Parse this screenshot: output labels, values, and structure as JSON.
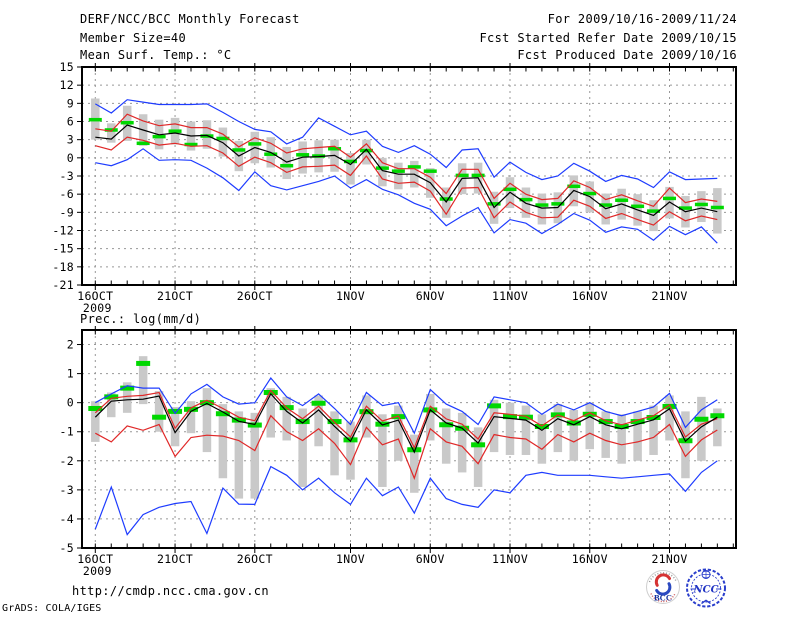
{
  "header": {
    "title": "DERF/NCC/BCC Monthly Forecast",
    "member_size": "Member Size=40",
    "for_range": "For 2009/10/16-2009/11/24",
    "fcst_started": "Fcst Started Refer Date 2009/10/15",
    "fcst_produced": "Fcst Produced Date 2009/10/16"
  },
  "footer": {
    "url": "http://cmdp.ncc.cma.gov.cn",
    "credit": "GrADS: COLA/IGES"
  },
  "logos": {
    "bcc_label": "BCC",
    "ncc_label": "NCC"
  },
  "colors": {
    "black": "#000000",
    "red": "#e02828",
    "blue": "#1e3cff",
    "green": "#00d800",
    "gray_bar": "#c9c9c9",
    "grid": "#989898"
  },
  "chart_data": [
    {
      "type": "line",
      "title": "Mean Surf. Temp.: °C",
      "axis_range": [
        -21,
        15
      ],
      "yticks": [
        15,
        12,
        9,
        6,
        3,
        0,
        -3,
        -6,
        -9,
        -12,
        -15,
        -18,
        -21
      ],
      "grid": true,
      "x_ticks": [
        {
          "day": 0,
          "label": "16OCT",
          "sub": "2009"
        },
        {
          "day": 5,
          "label": "21OCT"
        },
        {
          "day": 10,
          "label": "26OCT"
        },
        {
          "day": 16,
          "label": "1NOV"
        },
        {
          "day": 21,
          "label": "6NOV"
        },
        {
          "day": 26,
          "label": "11NOV"
        },
        {
          "day": 31,
          "label": "16NOV"
        },
        {
          "day": 36,
          "label": "21NOV"
        }
      ],
      "series": [
        {
          "name": "blue-upper",
          "color_key": "blue",
          "values": [
            8.9,
            7.4,
            9.6,
            9.2,
            8.8,
            8.8,
            8.8,
            8.9,
            7.5,
            6.0,
            4.7,
            4.3,
            2.3,
            3.4,
            6.6,
            5.2,
            3.8,
            4.4,
            1.9,
            0.9,
            2.0,
            0.6,
            -1.6,
            1.3,
            1.5,
            -3.2,
            -0.7,
            -2.4,
            -3.6,
            -3.0,
            -0.9,
            -2.2,
            -3.9,
            -2.9,
            -3.5,
            -4.9,
            -2.3,
            -3.6,
            -3.5,
            -3.4
          ]
        },
        {
          "name": "red-upper",
          "color_key": "red",
          "values": [
            4.8,
            4.4,
            7.2,
            6.1,
            5.3,
            5.6,
            5.0,
            5.0,
            3.9,
            1.8,
            3.3,
            2.4,
            0.8,
            1.5,
            1.7,
            1.9,
            0.1,
            2.3,
            -0.8,
            -1.8,
            -1.8,
            -3.2,
            -5.9,
            -1.9,
            -1.9,
            -6.7,
            -4.2,
            -6.0,
            -6.9,
            -6.7,
            -3.8,
            -4.9,
            -6.9,
            -6.1,
            -7.1,
            -8.0,
            -5.0,
            -7.4,
            -6.8,
            -7.2
          ]
        },
        {
          "name": "red-lower",
          "color_key": "red",
          "values": [
            2.0,
            1.3,
            3.4,
            2.9,
            2.1,
            2.4,
            1.9,
            2.0,
            0.8,
            -1.4,
            0.1,
            -0.8,
            -2.4,
            -1.5,
            -1.4,
            -1.2,
            -2.9,
            0.3,
            -3.5,
            -4.2,
            -4.0,
            -5.5,
            -9.3,
            -5.0,
            -4.9,
            -9.9,
            -7.3,
            -9.0,
            -9.9,
            -9.8,
            -7.0,
            -8.0,
            -10.0,
            -9.2,
            -10.2,
            -11.1,
            -8.9,
            -10.4,
            -9.6,
            -10.2
          ]
        },
        {
          "name": "blue-lower",
          "color_key": "blue",
          "values": [
            -0.8,
            -1.3,
            -0.3,
            1.5,
            -0.4,
            -0.3,
            -0.4,
            -1.7,
            -3.3,
            -5.4,
            -2.3,
            -4.6,
            -5.3,
            -4.6,
            -3.9,
            -3.0,
            -5.0,
            -3.6,
            -5.2,
            -6.1,
            -7.5,
            -8.5,
            -11.2,
            -9.6,
            -8.2,
            -12.4,
            -10.2,
            -10.8,
            -12.5,
            -11.0,
            -9.2,
            -10.3,
            -12.3,
            -11.4,
            -11.8,
            -13.6,
            -11.3,
            -12.7,
            -11.4,
            -14.1
          ]
        },
        {
          "name": "ensemble-mean",
          "color_key": "black",
          "values": [
            3.4,
            3.1,
            5.4,
            4.6,
            3.8,
            4.1,
            3.6,
            3.7,
            2.5,
            0.3,
            1.7,
            0.9,
            -0.7,
            0.1,
            0.2,
            0.4,
            -1.1,
            1.4,
            -2.1,
            -2.7,
            -2.7,
            -4.1,
            -7.3,
            -3.4,
            -3.3,
            -8.2,
            -5.7,
            -7.5,
            -8.3,
            -8.2,
            -5.4,
            -6.4,
            -8.4,
            -7.6,
            -8.6,
            -9.5,
            -7.3,
            -8.9,
            -8.3,
            -8.9
          ]
        }
      ],
      "obs": {
        "name": "obs-dash",
        "color_key": "green",
        "values": [
          6.3,
          4.6,
          5.8,
          2.4,
          3.5,
          4.4,
          2.2,
          3.6,
          3.2,
          1.3,
          2.3,
          0.6,
          -1.3,
          0.5,
          0.3,
          1.5,
          -0.6,
          1.2,
          -1.7,
          -2.2,
          -1.5,
          -2.2,
          -6.8,
          -2.9,
          -2.9,
          -7.6,
          -5.2,
          -6.9,
          -7.8,
          -7.6,
          -4.7,
          -5.9,
          -7.8,
          -7.0,
          -8.0,
          -8.8,
          -6.7,
          -8.3,
          -7.7,
          -8.2
        ]
      },
      "spread_bars": {
        "name": "spread-bar",
        "color_key": "gray_bar",
        "ranges": [
          [
            3.0,
            9.8
          ],
          [
            2.5,
            5.7
          ],
          [
            2.8,
            8.6
          ],
          [
            2.0,
            7.2
          ],
          [
            1.4,
            6.3
          ],
          [
            2.2,
            6.6
          ],
          [
            1.2,
            6.0
          ],
          [
            1.5,
            6.2
          ],
          [
            0.2,
            5.0
          ],
          [
            -2.2,
            2.8
          ],
          [
            -0.9,
            4.3
          ],
          [
            -1.6,
            3.4
          ],
          [
            -3.5,
            1.8
          ],
          [
            -2.6,
            2.7
          ],
          [
            -2.4,
            2.9
          ],
          [
            -2.3,
            3.0
          ],
          [
            -4.4,
            0.8
          ],
          [
            -1.1,
            3.0
          ],
          [
            -4.7,
            0.0
          ],
          [
            -5.2,
            -0.8
          ],
          [
            -4.9,
            -0.5
          ],
          [
            -6.6,
            -1.7
          ],
          [
            -9.9,
            -4.9
          ],
          [
            -6.0,
            -0.9
          ],
          [
            -5.9,
            -0.8
          ],
          [
            -10.9,
            -5.6
          ],
          [
            -8.3,
            -3.2
          ],
          [
            -9.9,
            -4.9
          ],
          [
            -11.0,
            -5.9
          ],
          [
            -10.8,
            -5.7
          ],
          [
            -8.0,
            -2.9
          ],
          [
            -9.0,
            -3.9
          ],
          [
            -11.0,
            -5.9
          ],
          [
            -10.2,
            -5.1
          ],
          [
            -11.2,
            -6.0
          ],
          [
            -12.1,
            -7.0
          ],
          [
            -10.0,
            -4.8
          ],
          [
            -11.5,
            -6.3
          ],
          [
            -10.6,
            -5.5
          ],
          [
            -12.5,
            -5.0
          ]
        ]
      }
    },
    {
      "type": "line",
      "title": "Prec.: log(mm/d)",
      "axis_range": [
        -5,
        2.5
      ],
      "yticks": [
        2,
        1,
        0,
        -1,
        -2,
        -3,
        -4,
        -5
      ],
      "grid": true,
      "x_ticks": [
        {
          "day": 0,
          "label": "16OCT",
          "sub": "2009"
        },
        {
          "day": 5,
          "label": "21OCT"
        },
        {
          "day": 10,
          "label": "26OCT"
        },
        {
          "day": 16,
          "label": "1NOV"
        },
        {
          "day": 21,
          "label": "6NOV"
        },
        {
          "day": 26,
          "label": "11NOV"
        },
        {
          "day": 31,
          "label": "16NOV"
        },
        {
          "day": 36,
          "label": "21NOV"
        }
      ],
      "series": [
        {
          "name": "blue-upper",
          "color_key": "blue",
          "values": [
            0.0,
            0.3,
            0.58,
            0.5,
            0.5,
            -0.37,
            0.3,
            0.63,
            0.2,
            -0.05,
            0.0,
            0.85,
            0.2,
            -0.1,
            0.3,
            -0.2,
            -0.75,
            0.35,
            -0.1,
            0.0,
            -1.05,
            0.45,
            -0.05,
            -0.3,
            -0.75,
            0.2,
            0.1,
            0.0,
            -0.4,
            -0.05,
            -0.25,
            0.0,
            -0.3,
            -0.45,
            -0.3,
            -0.15,
            0.32,
            -0.85,
            -0.25,
            0.1
          ]
        },
        {
          "name": "red-upper",
          "color_key": "red",
          "values": [
            -0.35,
            0.15,
            0.22,
            0.25,
            0.35,
            -0.88,
            -0.18,
            0.08,
            -0.2,
            -0.5,
            -0.62,
            0.42,
            -0.18,
            -0.55,
            -0.12,
            -0.68,
            -1.18,
            -0.12,
            -0.63,
            -0.46,
            -1.55,
            -0.12,
            -0.56,
            -0.74,
            -1.25,
            -0.35,
            -0.4,
            -0.47,
            -0.8,
            -0.42,
            -0.62,
            -0.35,
            -0.62,
            -0.76,
            -0.6,
            -0.45,
            -0.08,
            -1.18,
            -0.74,
            -0.55
          ]
        },
        {
          "name": "red-lower",
          "color_key": "red",
          "values": [
            -1.05,
            -1.35,
            -0.8,
            -0.95,
            -0.75,
            -1.85,
            -1.2,
            -1.12,
            -1.15,
            -1.3,
            -1.65,
            -0.45,
            -1.0,
            -1.3,
            -0.9,
            -1.4,
            -2.13,
            -0.85,
            -1.45,
            -1.25,
            -2.6,
            -0.9,
            -1.35,
            -1.5,
            -2.1,
            -1.1,
            -1.2,
            -1.25,
            -1.6,
            -1.1,
            -1.35,
            -1.05,
            -1.3,
            -1.45,
            -1.35,
            -1.2,
            -0.75,
            -1.85,
            -1.28,
            -0.94
          ]
        },
        {
          "name": "blue-lower",
          "color_key": "blue",
          "values": [
            -4.35,
            -2.9,
            -4.54,
            -3.85,
            -3.6,
            -3.47,
            -3.4,
            -4.5,
            -2.94,
            -3.49,
            -3.5,
            -2.2,
            -2.5,
            -3.0,
            -2.6,
            -3.1,
            -3.5,
            -2.6,
            -3.2,
            -2.9,
            -3.8,
            -2.6,
            -3.3,
            -3.5,
            -3.6,
            -3.0,
            -3.1,
            -2.5,
            -2.4,
            -2.5,
            -2.5,
            -2.5,
            -2.55,
            -2.6,
            -2.55,
            -2.5,
            -2.45,
            -3.05,
            -2.4,
            -2.0
          ]
        },
        {
          "name": "ensemble-mean",
          "color_key": "black",
          "values": [
            -0.5,
            0.05,
            0.1,
            0.12,
            0.23,
            -1.03,
            -0.3,
            -0.03,
            -0.32,
            -0.64,
            -0.75,
            0.3,
            -0.3,
            -0.7,
            -0.25,
            -0.82,
            -1.33,
            -0.25,
            -0.77,
            -0.6,
            -1.7,
            -0.25,
            -0.7,
            -0.88,
            -1.39,
            -0.48,
            -0.54,
            -0.6,
            -0.95,
            -0.55,
            -0.76,
            -0.48,
            -0.76,
            -0.9,
            -0.74,
            -0.59,
            -0.21,
            -1.33,
            -0.83,
            -0.5
          ]
        }
      ],
      "obs": {
        "name": "obs-dash",
        "color_key": "green",
        "values": [
          -0.2,
          0.2,
          0.5,
          1.35,
          -0.5,
          -0.3,
          -0.23,
          0.0,
          -0.38,
          -0.6,
          -0.77,
          0.35,
          -0.17,
          -0.65,
          -0.02,
          -0.65,
          -1.28,
          -0.31,
          -0.74,
          -0.48,
          -1.62,
          -0.25,
          -0.76,
          -0.88,
          -1.45,
          -0.11,
          -0.48,
          -0.5,
          -0.82,
          -0.42,
          -0.7,
          -0.4,
          -0.65,
          -0.82,
          -0.65,
          -0.51,
          -0.13,
          -1.31,
          -0.57,
          -0.45
        ]
      },
      "spread_bars": {
        "name": "spread-bar",
        "color_key": "gray_bar",
        "ranges": [
          [
            -1.35,
            0.05
          ],
          [
            -0.5,
            0.35
          ],
          [
            -0.35,
            0.7
          ],
          [
            -0.05,
            1.6
          ],
          [
            -1.0,
            0.4
          ],
          [
            -1.5,
            -0.15
          ],
          [
            -1.05,
            0.05
          ],
          [
            -1.7,
            0.5
          ],
          [
            -2.6,
            -0.05
          ],
          [
            -3.3,
            -0.3
          ],
          [
            -3.3,
            -0.35
          ],
          [
            -1.2,
            0.5
          ],
          [
            -1.3,
            0.2
          ],
          [
            -2.9,
            -0.2
          ],
          [
            -1.5,
            0.25
          ],
          [
            -2.5,
            -0.3
          ],
          [
            -2.65,
            -0.65
          ],
          [
            -1.2,
            0.25
          ],
          [
            -2.9,
            -0.4
          ],
          [
            -2.0,
            -0.1
          ],
          [
            -3.1,
            -1.1
          ],
          [
            -1.3,
            0.3
          ],
          [
            -2.1,
            -0.2
          ],
          [
            -2.4,
            -0.35
          ],
          [
            -2.9,
            -0.85
          ],
          [
            -1.7,
            0.1
          ],
          [
            -1.8,
            0.0
          ],
          [
            -1.8,
            -0.1
          ],
          [
            -2.1,
            -0.4
          ],
          [
            -1.7,
            -0.05
          ],
          [
            -2.0,
            -0.25
          ],
          [
            -1.6,
            0.0
          ],
          [
            -1.9,
            -0.3
          ],
          [
            -2.1,
            -0.4
          ],
          [
            -2.0,
            -0.3
          ],
          [
            -1.8,
            -0.1
          ],
          [
            -1.3,
            0.25
          ],
          [
            -2.6,
            -0.3
          ],
          [
            -2.0,
            0.2
          ],
          [
            -1.5,
            -0.2
          ]
        ]
      }
    }
  ]
}
